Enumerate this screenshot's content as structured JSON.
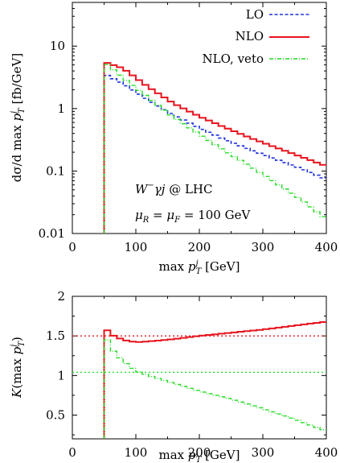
{
  "chart_data": [
    {
      "type": "line",
      "step": true,
      "yscale": "log",
      "xlim": [
        0,
        400
      ],
      "ylim": [
        0.01,
        50
      ],
      "xticks": [
        0,
        100,
        200,
        300,
        400
      ],
      "yticks": [
        0.01,
        0.1,
        1,
        10
      ],
      "xtick_labels": [
        "0",
        "100",
        "200",
        "300",
        "400"
      ],
      "ytick_labels": [
        "0.01",
        "0.1",
        "1",
        "10"
      ],
      "xlabel": "max p_T^j [GeV]",
      "ylabel": "dσ/d max p_T^j [fb/GeV]",
      "legend_position": "top-right",
      "annotations": [
        "W⁻γj @ LHC",
        "μ_R = μ_F = 100 GeV"
      ],
      "x": [
        50,
        80,
        120,
        160,
        200,
        240,
        280,
        320,
        360,
        400
      ],
      "series": [
        {
          "name": "LO",
          "color": "#1f33dd",
          "dash": "dashed",
          "values": [
            3.6,
            2.5,
            1.35,
            0.78,
            0.49,
            0.32,
            0.22,
            0.155,
            0.11,
            0.074
          ]
        },
        {
          "name": "NLO",
          "color": "#e8141e",
          "dash": "solid",
          "values": [
            5.6,
            4.4,
            2.2,
            1.2,
            0.75,
            0.5,
            0.34,
            0.24,
            0.17,
            0.12
          ]
        },
        {
          "name": "NLO, veto",
          "color": "#22dd22",
          "dash": "dashdot",
          "values": [
            5.6,
            3.1,
            1.48,
            0.72,
            0.39,
            0.21,
            0.12,
            0.065,
            0.035,
            0.017
          ]
        }
      ]
    },
    {
      "type": "line",
      "step": true,
      "xlim": [
        0,
        400
      ],
      "ylim": [
        0.2,
        2
      ],
      "xticks": [
        0,
        100,
        200,
        300,
        400
      ],
      "yticks": [
        0.5,
        1,
        1.5,
        2
      ],
      "xtick_labels": [
        "0",
        "100",
        "200",
        "300",
        "400"
      ],
      "ytick_labels": [
        "0.5",
        "1",
        "1.5",
        "2"
      ],
      "xlabel": "max p_T^j [GeV]",
      "ylabel": "K(max p_T^j)",
      "reference_lines": [
        {
          "y": 1.5,
          "color": "#e8141e"
        },
        {
          "y": 1.04,
          "color": "#22dd22"
        }
      ],
      "x": [
        50,
        60,
        80,
        100,
        120,
        160,
        200,
        250,
        300,
        350,
        400
      ],
      "series": [
        {
          "name": "NLO",
          "color": "#e8141e",
          "dash": "solid",
          "values": [
            1.62,
            1.52,
            1.45,
            1.42,
            1.43,
            1.46,
            1.5,
            1.54,
            1.58,
            1.63,
            1.68
          ]
        },
        {
          "name": "NLO, veto",
          "color": "#22dd22",
          "dash": "dashdot",
          "values": [
            1.55,
            1.35,
            1.18,
            1.06,
            1.0,
            0.9,
            0.8,
            0.7,
            0.58,
            0.45,
            0.3
          ]
        }
      ]
    }
  ]
}
